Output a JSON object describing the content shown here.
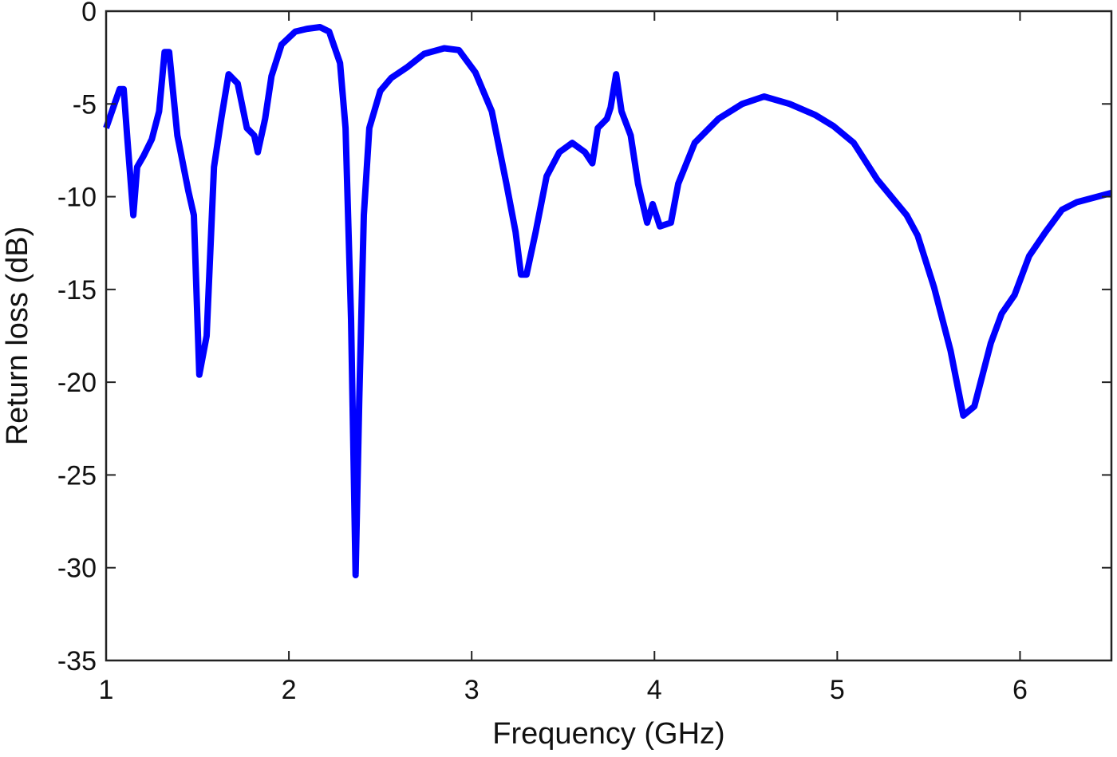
{
  "chart_data": {
    "type": "line",
    "title": "",
    "xlabel": "Frequency (GHz)",
    "ylabel": "Return loss (dB)",
    "xlim": [
      1,
      6.5
    ],
    "ylim": [
      -35,
      0
    ],
    "xticks": [
      1,
      2,
      3,
      4,
      5,
      6
    ],
    "yticks": [
      0,
      -5,
      -10,
      -15,
      -20,
      -25,
      -30,
      -35
    ],
    "grid": false,
    "line_color": "#0000FF",
    "series": [
      {
        "x": [
          1.0,
          1.074,
          1.096,
          1.118,
          1.149,
          1.17,
          1.205,
          1.25,
          1.29,
          1.32,
          1.345,
          1.39,
          1.45,
          1.48,
          1.51,
          1.55,
          1.59,
          1.63,
          1.67,
          1.72,
          1.77,
          1.81,
          1.83,
          1.87,
          1.905,
          1.96,
          2.035,
          2.1,
          2.17,
          2.22,
          2.28,
          2.31,
          2.34,
          2.365,
          2.385,
          2.41,
          2.44,
          2.5,
          2.56,
          2.65,
          2.74,
          2.85,
          2.93,
          3.02,
          3.11,
          3.19,
          3.24,
          3.27,
          3.3,
          3.35,
          3.41,
          3.48,
          3.55,
          3.62,
          3.66,
          3.69,
          3.74,
          3.76,
          3.79,
          3.82,
          3.87,
          3.91,
          3.96,
          3.99,
          4.03,
          4.09,
          4.13,
          4.22,
          4.35,
          4.48,
          4.6,
          4.74,
          4.88,
          4.98,
          5.09,
          5.22,
          5.38,
          5.44,
          5.53,
          5.62,
          5.69,
          5.75,
          5.84,
          5.9,
          5.97,
          6.05,
          6.14,
          6.23,
          6.31,
          6.5
        ],
        "y": [
          -6.3,
          -4.2,
          -4.2,
          -7.1,
          -11,
          -8.4,
          -7.8,
          -6.9,
          -5.4,
          -2.2,
          -2.2,
          -6.7,
          -9.7,
          -11,
          -19.6,
          -17.5,
          -8.4,
          -5.8,
          -3.4,
          -3.9,
          -6.3,
          -6.7,
          -7.6,
          -5.8,
          -3.5,
          -1.8,
          -1.1,
          -0.95,
          -0.86,
          -1.1,
          -2.8,
          -6.3,
          -16.6,
          -30.4,
          -20.9,
          -11,
          -6.3,
          -4.3,
          -3.6,
          -3.0,
          -2.3,
          -2.0,
          -2.1,
          -3.3,
          -5.4,
          -9.3,
          -11.9,
          -14.2,
          -14.2,
          -11.9,
          -8.9,
          -7.6,
          -7.1,
          -7.6,
          -8.2,
          -6.3,
          -5.8,
          -5.2,
          -3.4,
          -5.4,
          -6.7,
          -9.3,
          -11.4,
          -10.4,
          -11.6,
          -11.4,
          -9.3,
          -7.1,
          -5.8,
          -5.0,
          -4.6,
          -5.0,
          -5.6,
          -6.2,
          -7.1,
          -9.1,
          -11,
          -12.1,
          -14.9,
          -18.3,
          -21.8,
          -21.3,
          -17.9,
          -16.3,
          -15.3,
          -13.2,
          -11.9,
          -10.7,
          -10.3,
          -9.8
        ]
      }
    ]
  }
}
